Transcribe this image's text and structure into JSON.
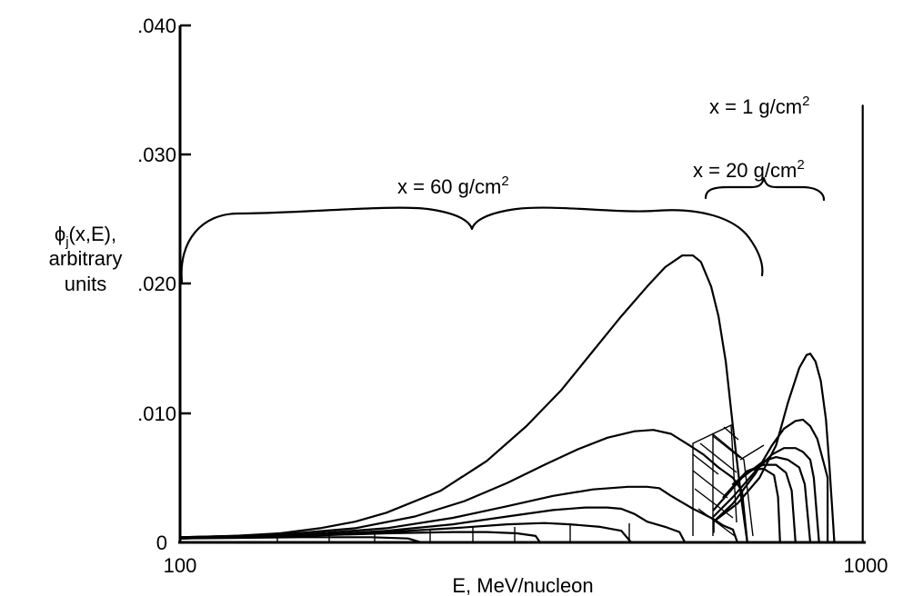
{
  "chart_data": {
    "type": "line",
    "title": "",
    "xlabel": "E, MeV/nucleon",
    "ylabel_lines": [
      "ϕj(x,E),",
      "arbitrary",
      "units"
    ],
    "ylabel_symbol": "ϕ",
    "ylabel_subscript": "j",
    "ylabel_args": "(x,E),",
    "ylabel_line2": "arbitrary",
    "ylabel_line3": "units",
    "x_scale": "log",
    "xlim": [
      100,
      1000
    ],
    "ylim": [
      0,
      0.04
    ],
    "xticks": [
      100,
      1000
    ],
    "xtick_labels": [
      "100",
      "1000"
    ],
    "yticks": [
      0,
      0.01,
      0.02,
      0.03,
      0.04
    ],
    "ytick_labels": [
      "0",
      ".010",
      ".020",
      ".030",
      ".040"
    ],
    "grid": false,
    "annotations": [
      {
        "base": "x = 60 g/cm",
        "sup": "2"
      },
      {
        "base": "x = 20 g/cm",
        "sup": "2"
      },
      {
        "base": "x = 1 g/cm",
        "sup": "2"
      }
    ],
    "series": [
      {
        "values": [
          [
            100,
            0.0004
          ],
          [
            120,
            0.0005
          ],
          [
            140,
            0.0007
          ],
          [
            160,
            0.0011
          ],
          [
            180,
            0.0016
          ],
          [
            200,
            0.0023
          ],
          [
            240,
            0.004
          ],
          [
            280,
            0.0063
          ],
          [
            320,
            0.009
          ],
          [
            360,
            0.0118
          ],
          [
            400,
            0.0148
          ],
          [
            440,
            0.0175
          ],
          [
            480,
            0.0198
          ],
          [
            510,
            0.0213
          ],
          [
            540,
            0.0222
          ],
          [
            560,
            0.0222
          ],
          [
            575,
            0.0217
          ],
          [
            595,
            0.0198
          ],
          [
            610,
            0.0175
          ],
          [
            625,
            0.014
          ],
          [
            640,
            0.009
          ],
          [
            660,
            0.003
          ],
          [
            672,
            0
          ]
        ]
      },
      {
        "values": [
          [
            100,
            0.0004
          ],
          [
            140,
            0.0006
          ],
          [
            180,
            0.0011
          ],
          [
            220,
            0.002
          ],
          [
            260,
            0.0032
          ],
          [
            300,
            0.0046
          ],
          [
            340,
            0.006
          ],
          [
            380,
            0.0072
          ],
          [
            420,
            0.0081
          ],
          [
            460,
            0.0086
          ],
          [
            490,
            0.0087
          ],
          [
            520,
            0.0084
          ],
          [
            550,
            0.0076
          ],
          [
            580,
            0.0068
          ],
          [
            610,
            0.0058
          ],
          [
            640,
            0.005
          ],
          [
            660,
            0.004
          ],
          [
            672,
            0
          ]
        ]
      },
      {
        "values": [
          [
            100,
            0.0004
          ],
          [
            150,
            0.0006
          ],
          [
            200,
            0.0011
          ],
          [
            250,
            0.0019
          ],
          [
            300,
            0.0028
          ],
          [
            350,
            0.0036
          ],
          [
            400,
            0.0041
          ],
          [
            450,
            0.0043
          ],
          [
            480,
            0.0043
          ],
          [
            500,
            0.0042
          ],
          [
            520,
            0.0036
          ],
          [
            560,
            0.0026
          ],
          [
            600,
            0.0018
          ],
          [
            620,
            0.0013
          ],
          [
            640,
            0.001
          ],
          [
            650,
            0
          ]
        ]
      },
      {
        "values": [
          [
            100,
            0.0003
          ],
          [
            150,
            0.0005
          ],
          [
            200,
            0.0009
          ],
          [
            250,
            0.0014
          ],
          [
            300,
            0.002
          ],
          [
            350,
            0.0025
          ],
          [
            390,
            0.0027
          ],
          [
            420,
            0.0027
          ],
          [
            440,
            0.0026
          ],
          [
            460,
            0.0022
          ],
          [
            480,
            0.0016
          ],
          [
            510,
            0.0012
          ],
          [
            535,
            0.0008
          ],
          [
            545,
            0
          ]
        ]
      },
      {
        "values": [
          [
            100,
            0.0003
          ],
          [
            150,
            0.0005
          ],
          [
            200,
            0.0008
          ],
          [
            250,
            0.0011
          ],
          [
            300,
            0.0014
          ],
          [
            340,
            0.0015
          ],
          [
            370,
            0.0014
          ],
          [
            410,
            0.0012
          ],
          [
            440,
            0.0009
          ],
          [
            455,
            0
          ]
        ]
      },
      {
        "values": [
          [
            100,
            0.0003
          ],
          [
            150,
            0.0005
          ],
          [
            200,
            0.0007
          ],
          [
            250,
            0.0008
          ],
          [
            280,
            0.0008
          ],
          [
            310,
            0.0007
          ],
          [
            330,
            0.0005
          ],
          [
            335,
            0
          ]
        ]
      },
      {
        "values": [
          [
            100,
            0.0003
          ],
          [
            150,
            0.0004
          ],
          [
            190,
            0.0004
          ],
          [
            215,
            0.0003
          ],
          [
            225,
            0
          ]
        ]
      },
      {
        "values": [
          [
            600,
            0.0008
          ],
          [
            600,
            0.0016
          ],
          [
            650,
            0.003
          ],
          [
            700,
            0.005
          ],
          [
            740,
            0.0075
          ],
          [
            770,
            0.0108
          ],
          [
            800,
            0.0135
          ],
          [
            820,
            0.0145
          ],
          [
            830,
            0.0146
          ],
          [
            845,
            0.014
          ],
          [
            860,
            0.0125
          ],
          [
            875,
            0.0095
          ],
          [
            885,
            0.006
          ],
          [
            895,
            0.002
          ],
          [
            900,
            0
          ]
        ]
      },
      {
        "values": [
          [
            600,
            0.0016
          ],
          [
            640,
            0.003
          ],
          [
            690,
            0.0053
          ],
          [
            730,
            0.0075
          ],
          [
            760,
            0.0088
          ],
          [
            790,
            0.0094
          ],
          [
            810,
            0.0095
          ],
          [
            830,
            0.009
          ],
          [
            850,
            0.008
          ],
          [
            870,
            0.006
          ],
          [
            880,
            0.005
          ],
          [
            880,
            0
          ]
        ]
      },
      {
        "values": [
          [
            600,
            0.002
          ],
          [
            640,
            0.0035
          ],
          [
            690,
            0.0055
          ],
          [
            730,
            0.0068
          ],
          [
            760,
            0.0073
          ],
          [
            790,
            0.0073
          ],
          [
            810,
            0.007
          ],
          [
            830,
            0.0064
          ],
          [
            840,
            0.005
          ],
          [
            855,
            0
          ]
        ]
      },
      {
        "values": [
          [
            600,
            0.0025
          ],
          [
            660,
            0.005
          ],
          [
            710,
            0.0063
          ],
          [
            740,
            0.0066
          ],
          [
            770,
            0.0064
          ],
          [
            800,
            0.0058
          ],
          [
            815,
            0.0045
          ],
          [
            830,
            0
          ]
        ]
      },
      {
        "values": [
          [
            620,
            0.0035
          ],
          [
            670,
            0.0055
          ],
          [
            710,
            0.006
          ],
          [
            740,
            0.006
          ],
          [
            765,
            0.0054
          ],
          [
            780,
            0.004
          ],
          [
            790,
            0
          ]
        ]
      },
      {
        "values": [
          [
            640,
            0.0045
          ],
          [
            680,
            0.0056
          ],
          [
            710,
            0.0057
          ],
          [
            735,
            0.0052
          ],
          [
            745,
            0.0035
          ],
          [
            750,
            0
          ]
        ]
      },
      {
        "values": [
          [
            990,
            0
          ],
          [
            990,
            0.0338
          ]
        ]
      }
    ]
  }
}
